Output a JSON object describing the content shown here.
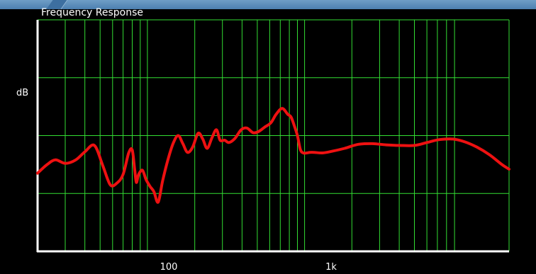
{
  "window": {
    "title": "Frequency Response"
  },
  "colors": {
    "background": "#000000",
    "grid": "#33dd33",
    "curve": "#ee1111",
    "axis": "#ffffff",
    "topbar": "#5b8bbb"
  },
  "chart_data": {
    "type": "line",
    "title": "Frequency Response",
    "xlabel": "",
    "ylabel": "dB",
    "xscale": "log",
    "xlim": [
      20,
      20000
    ],
    "xticks": [
      {
        "value": 100,
        "label": "100"
      },
      {
        "value": 1000,
        "label": "1k"
      }
    ],
    "ylim": [
      0,
      400
    ],
    "grid": true,
    "series": [
      {
        "color": "#ee1111",
        "x": [
          20,
          23,
          26,
          30,
          35,
          40,
          46,
          52,
          58,
          64,
          70,
          76,
          80,
          83,
          85,
          88,
          93,
          98,
          104,
          110,
          117,
          125,
          135,
          146,
          157,
          168,
          180,
          194,
          210,
          225,
          240,
          258,
          275,
          290,
          310,
          330,
          360,
          395,
          430,
          470,
          510,
          560,
          610,
          660,
          720,
          780,
          820,
          860,
          900,
          940,
          980,
          1030,
          1080,
          1150,
          1300,
          1500,
          1800,
          2200,
          2700,
          3300,
          4000,
          5000,
          6000,
          7200,
          8800,
          10500,
          12500,
          15000,
          18000,
          20000
        ],
        "y": [
          135,
          150,
          158,
          152,
          158,
          172,
          183,
          148,
          115,
          118,
          133,
          170,
          175,
          141,
          119,
          133,
          140,
          124,
          112,
          103,
          85,
          122,
          158,
          187,
          200,
          186,
          171,
          180,
          204,
          194,
          178,
          197,
          210,
          192,
          192,
          188,
          195,
          210,
          213,
          205,
          207,
          215,
          222,
          237,
          247,
          237,
          232,
          217,
          200,
          176,
          170,
          170,
          171,
          171,
          170,
          173,
          178,
          185,
          186,
          184,
          183,
          183,
          188,
          193,
          194,
          189,
          180,
          167,
          150,
          142
        ]
      }
    ]
  }
}
